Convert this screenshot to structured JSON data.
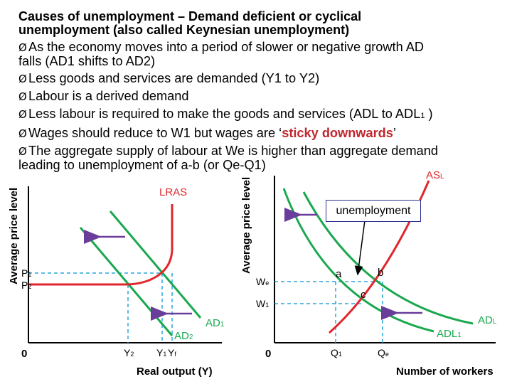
{
  "text": {
    "title_line1": "Causes of unemployment – Demand deficient or cyclical",
    "title_line2": "unemployment (also called Keynesian unemployment)",
    "bullet_marker": "Ø",
    "b1_line1": "As the economy moves into a period of slower or negative growth AD",
    "b1_line2": "falls (AD1 shifts to AD2)",
    "b2": "Less goods and services are demanded (Y1 to Y2)",
    "b3": "Labour is a derived demand",
    "b4_main": "Less labour is required to make the goods and services (ADL to ADL",
    "b4_sub": "1",
    "b4_end": " )",
    "b5_pre": "Wages should reduce to W1 but wages are ‘",
    "b5_emph": "sticky downwards",
    "b5_post": "’",
    "b6_line1": "The aggregate supply of labour at We is higher than aggregate demand",
    "b6_line2": "leading to unemployment of a-b (or Qe-Q1)"
  },
  "left_diagram": {
    "y_axis_label": "Average price level",
    "x_axis_label": "Real output (Y)",
    "origin": "0",
    "curve_lras": "LRAS",
    "curve_ad1": "AD",
    "curve_ad1_sub": "1",
    "curve_ad2": "AD",
    "curve_ad2_sub": "2",
    "p1": "P",
    "p1_sub": "1",
    "p2": "P",
    "p2_sub": "2",
    "y2": "Y",
    "y2_sub": "2",
    "y1": "Y",
    "y1_sub": "1",
    "yf": "Y",
    "yf_sub": "f"
  },
  "right_diagram": {
    "y_axis_label": "Average price level",
    "x_axis_label": "Number of workers",
    "origin": "0",
    "curve_asl": "AS",
    "curve_asl_sub": "L",
    "curve_adl": "AD",
    "curve_adl_sub": "L",
    "curve_adl1": "ADL",
    "curve_adl1_sub": "1",
    "we": "W",
    "we_sub": "e",
    "w1": "W",
    "w1_sub": "1",
    "q1": "Q",
    "q1_sub": "1",
    "qe": "Q",
    "qe_sub": "e",
    "point_a": "a",
    "point_b": "b",
    "point_c": "c",
    "callout": "unemployment"
  },
  "colors": {
    "green": "#1aa84f",
    "red": "#e0262c",
    "purple": "#6a3d9a",
    "dash_blue": "#2aa6de",
    "label_red": "#e0262c",
    "label_green": "#1aa84f",
    "emphasis": "#c0262c"
  }
}
